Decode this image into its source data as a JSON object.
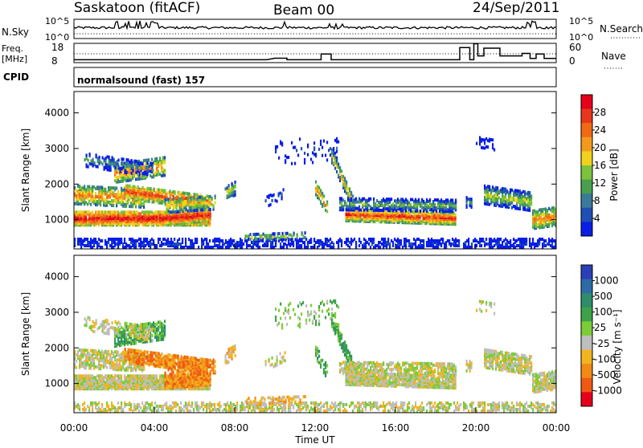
{
  "header": {
    "station": "Saskatoon (fitACF)",
    "beam": "Beam 00",
    "date": "24/Sep/2011"
  },
  "strip_labels": {
    "nsky": "N.Sky",
    "nsky_top": "10^5",
    "nsky_bottom": "10^0",
    "nsearch": "N.Search",
    "nsearch_top": "10^5",
    "nsearch_bottom": "10^0",
    "freq_line1": "Freq.",
    "freq_line2": "[MHz]",
    "freq_top": "18",
    "freq_bottom": "8",
    "nave": "Nave",
    "nave_top": "60",
    "nave_bottom": "0",
    "cpid": "CPID",
    "cpid_text": "normalsound (fast) 157"
  },
  "colors": {
    "power_scale": [
      "#0a1ee6",
      "#1f4fb4",
      "#3a7a9a",
      "#48a04e",
      "#7cc23c",
      "#f2d11e",
      "#f29a1e",
      "#f06a16",
      "#e8361a",
      "#e6001a"
    ],
    "velocity_scale": [
      "#2a3fb8",
      "#2d6ba6",
      "#2e8e6c",
      "#3da34a",
      "#7ccc3a",
      "#bebebe",
      "#f2b41e",
      "#f28a16",
      "#ee5a14",
      "#e6001a"
    ]
  },
  "chart_data": [
    {
      "type": "heatmap",
      "name": "power-panel",
      "ylabel": "Slant Range [km]",
      "yticks": [
        1000,
        2000,
        3000,
        4000
      ],
      "ylim": [
        180,
        4600
      ],
      "xlim_hours": [
        0,
        24
      ],
      "colorbar_label": "Power [dB]",
      "colorbar_ticks": [
        "4",
        "8",
        "12",
        "16",
        "20",
        "24",
        "28"
      ],
      "colorbar_range": [
        0,
        32
      ]
    },
    {
      "type": "heatmap",
      "name": "velocity-panel",
      "ylabel": "Slant Range [km]",
      "yticks": [
        1000,
        2000,
        3000,
        4000
      ],
      "ylim": [
        180,
        4600
      ],
      "xlim_hours": [
        0,
        24
      ],
      "xlabel": "Time UT",
      "xticks": [
        "00:00",
        "04:00",
        "08:00",
        "12:00",
        "16:00",
        "20:00",
        "00:00"
      ],
      "colorbar_label": "Velocity [m s⁻¹]",
      "colorbar_ticks": [
        "1000",
        "500",
        "100",
        "25",
        "-25",
        "-100",
        "-500",
        "-1000"
      ]
    }
  ],
  "frequency_mhz": [
    [
      0,
      9.5
    ],
    [
      9.6,
      9.5
    ],
    [
      10,
      10.3
    ],
    [
      10.6,
      10.3
    ],
    [
      10.6,
      9.5
    ],
    [
      12.3,
      9.5
    ],
    [
      12.3,
      12.5
    ],
    [
      12.8,
      12.5
    ],
    [
      12.8,
      9.5
    ],
    [
      19.2,
      9.5
    ],
    [
      19.2,
      15.8
    ],
    [
      19.7,
      15.8
    ],
    [
      19.7,
      9.5
    ],
    [
      19.9,
      9.5
    ],
    [
      19.9,
      17.8
    ],
    [
      20.1,
      17.8
    ],
    [
      20.1,
      11.5
    ],
    [
      20.4,
      11.5
    ],
    [
      20.4,
      15.5
    ],
    [
      21.2,
      15.5
    ],
    [
      21.2,
      11.5
    ],
    [
      22.3,
      11.5
    ],
    [
      22.3,
      12.8
    ],
    [
      22.7,
      12.8
    ],
    [
      22.7,
      10.2
    ],
    [
      23.0,
      10.2
    ],
    [
      23.0,
      12.5
    ],
    [
      23.4,
      12.5
    ],
    [
      23.4,
      10.2
    ],
    [
      24,
      10.2
    ]
  ]
}
